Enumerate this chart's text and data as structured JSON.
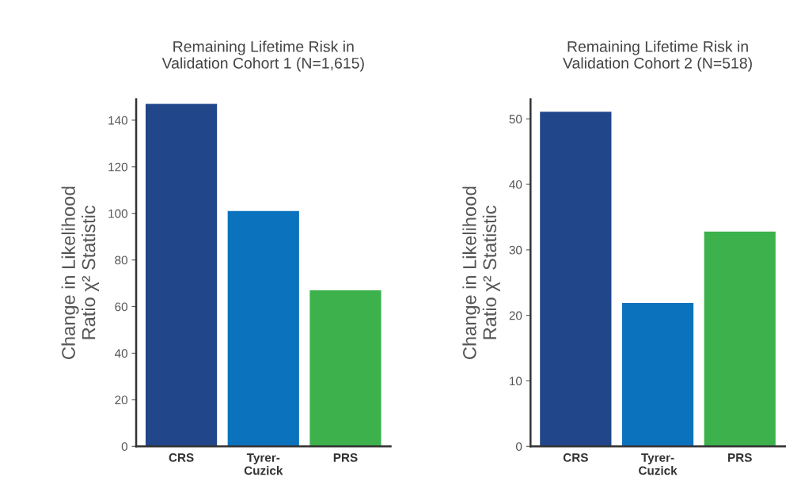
{
  "chart_data": [
    {
      "type": "bar",
      "title": "Remaining Lifetime Risk in\nValidation Cohort 1 (N=1,615)",
      "ylabel": "Change in Likelihood\nRatio χ² Statistic",
      "categories": [
        "CRS",
        "Tyrer-\nCuzick",
        "PRS"
      ],
      "values": [
        147,
        101,
        67
      ],
      "colors": [
        "#21468a",
        "#0b72bd",
        "#3cb14c"
      ],
      "ylim": [
        0,
        149
      ],
      "yticks": [
        0,
        20,
        40,
        60,
        80,
        100,
        120,
        140
      ],
      "grid": false
    },
    {
      "type": "bar",
      "title": "Remaining Lifetime Risk in\nValidation Cohort 2 (N=518)",
      "ylabel": "Change in Likelihood\nRatio χ² Statistic",
      "categories": [
        "CRS",
        "Tyrer-\nCuzick",
        "PRS"
      ],
      "values": [
        51.1,
        21.9,
        32.8
      ],
      "colors": [
        "#21468a",
        "#0b72bd",
        "#3cb14c"
      ],
      "ylim": [
        0,
        53
      ],
      "yticks": [
        0,
        10,
        20,
        30,
        40,
        50
      ],
      "grid": false
    }
  ]
}
